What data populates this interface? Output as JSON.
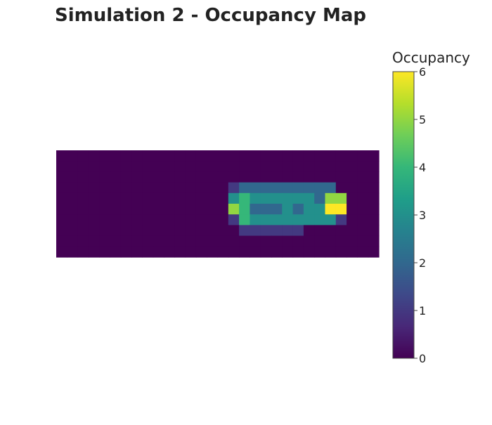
{
  "chart_data": {
    "type": "heatmap",
    "title": "Simulation 2 - Occupancy Map",
    "colorbar": {
      "title": "Occupancy",
      "range": [
        0,
        6
      ],
      "ticks": [
        "0",
        "1",
        "2",
        "3",
        "4",
        "5",
        "6"
      ],
      "colorscale": [
        "#440154",
        "#482878",
        "#3e4989",
        "#31688e",
        "#26828e",
        "#1f9e89",
        "#35b779",
        "#6ece58",
        "#b5de2b",
        "#fde725"
      ]
    },
    "z": [
      [
        0,
        0,
        0,
        0,
        0,
        0,
        0,
        0,
        0,
        0,
        0,
        0,
        0,
        0,
        0,
        0,
        0,
        0,
        0,
        0,
        0,
        0,
        0,
        0,
        0,
        0,
        0,
        0,
        0,
        0
      ],
      [
        0,
        0,
        0,
        0,
        0,
        0,
        0,
        0,
        0,
        0,
        0,
        0,
        0,
        0,
        0,
        0,
        0,
        0,
        0,
        0,
        0,
        0,
        0,
        0,
        0,
        0,
        0,
        0,
        0,
        0
      ],
      [
        0,
        0,
        0,
        0,
        0,
        0,
        0,
        0,
        0,
        0,
        0,
        0,
        0,
        0,
        0,
        0,
        0,
        0,
        0,
        0,
        0,
        0,
        0,
        0,
        0,
        0,
        0,
        0,
        0,
        0
      ],
      [
        0,
        0,
        0,
        0,
        0,
        0,
        0,
        0,
        0,
        0,
        0,
        0,
        0,
        0,
        0,
        0,
        1,
        2,
        2,
        2,
        2,
        2,
        2,
        2,
        2,
        2,
        0,
        0,
        0,
        0
      ],
      [
        0,
        0,
        0,
        0,
        0,
        0,
        0,
        0,
        0,
        0,
        0,
        0,
        0,
        0,
        0,
        0,
        3,
        4,
        3,
        3,
        3,
        3,
        3,
        3,
        2,
        5,
        5,
        0,
        0,
        0
      ],
      [
        0,
        0,
        0,
        0,
        0,
        0,
        0,
        0,
        0,
        0,
        0,
        0,
        0,
        0,
        0,
        0,
        5,
        4,
        2,
        2,
        2,
        3,
        2,
        3,
        3,
        6,
        6,
        0,
        0,
        0
      ],
      [
        0,
        0,
        0,
        0,
        0,
        0,
        0,
        0,
        0,
        0,
        0,
        0,
        0,
        0,
        0,
        0,
        1,
        4,
        3,
        3,
        3,
        3,
        3,
        3,
        3,
        3,
        1,
        0,
        0,
        0
      ],
      [
        0,
        0,
        0,
        0,
        0,
        0,
        0,
        0,
        0,
        0,
        0,
        0,
        0,
        0,
        0,
        0,
        0,
        1,
        1,
        1,
        1,
        1,
        1,
        0,
        0,
        0,
        0,
        0,
        0,
        0
      ],
      [
        0,
        0,
        0,
        0,
        0,
        0,
        0,
        0,
        0,
        0,
        0,
        0,
        0,
        0,
        0,
        0,
        0,
        0,
        0,
        0,
        0,
        0,
        0,
        0,
        0,
        0,
        0,
        0,
        0,
        0
      ],
      [
        0,
        0,
        0,
        0,
        0,
        0,
        0,
        0,
        0,
        0,
        0,
        0,
        0,
        0,
        0,
        0,
        0,
        0,
        0,
        0,
        0,
        0,
        0,
        0,
        0,
        0,
        0,
        0,
        0,
        0
      ]
    ]
  }
}
